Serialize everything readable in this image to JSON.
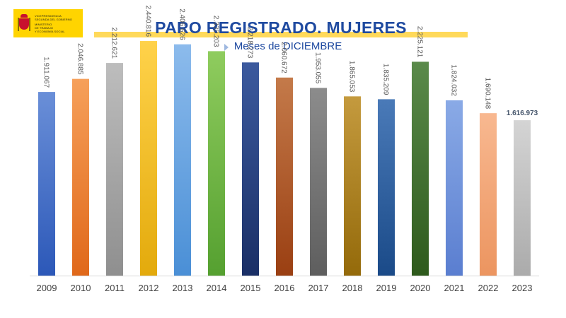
{
  "logo": {
    "lines": [
      "VICEPRESIDENCIA",
      "SEGUNDA DEL GOBIERNO",
      "MINISTERIO",
      "DE TRABAJO",
      "Y ECONOMÍA SOCIAL"
    ]
  },
  "header": {
    "title": "PARO REGISTRADO. MUJERES",
    "subtitle": "Meses de DICIEMBRE"
  },
  "chart_data": {
    "type": "bar",
    "title": "PARO REGISTRADO. MUJERES",
    "subtitle": "Meses de DICIEMBRE",
    "xlabel": "",
    "ylabel": "",
    "grid": false,
    "legend": "none",
    "ylim": [
      0,
      2500000
    ],
    "categories": [
      "2009",
      "2010",
      "2011",
      "2012",
      "2013",
      "2014",
      "2015",
      "2016",
      "2017",
      "2018",
      "2019",
      "2020",
      "2021",
      "2022",
      "2023"
    ],
    "values": [
      1911067,
      2046885,
      2212621,
      2440816,
      2406626,
      2335203,
      2218273,
      2060672,
      1953055,
      1865053,
      1835209,
      2225121,
      1824032,
      1690148,
      1616973
    ],
    "labels": [
      "1.911.067",
      "2.046.885",
      "2.212.621",
      "2.440.816",
      "2.406.626",
      "2.335.203",
      "2.218.273",
      "2.060.672",
      "1.953.055",
      "1.865.053",
      "1.835.209",
      "2.225.121",
      "1.824.032",
      "1.690.148",
      "1.616.973"
    ],
    "colors": [
      [
        "#6a8fd8",
        "#2c58b8"
      ],
      [
        "#f6a05a",
        "#e0681a"
      ],
      [
        "#bdbdbd",
        "#8f8f8f"
      ],
      [
        "#ffd24a",
        "#e3aa0c"
      ],
      [
        "#8cbbec",
        "#4a8fd6"
      ],
      [
        "#8fcc5e",
        "#55a030"
      ],
      [
        "#3c5a9e",
        "#1a2f66"
      ],
      [
        "#c47a4a",
        "#9a3f12"
      ],
      [
        "#8c8c8c",
        "#5e5e5e"
      ],
      [
        "#c49a3e",
        "#946a0a"
      ],
      [
        "#4a7ab8",
        "#1a4a88"
      ],
      [
        "#5a8a4a",
        "#2e5a1c"
      ],
      [
        "#8aaae6",
        "#5a7ed0"
      ],
      [
        "#f8b890",
        "#ec9560"
      ],
      [
        "#d4d4d4",
        "#ababab"
      ]
    ],
    "last_label_emphasis": true
  }
}
